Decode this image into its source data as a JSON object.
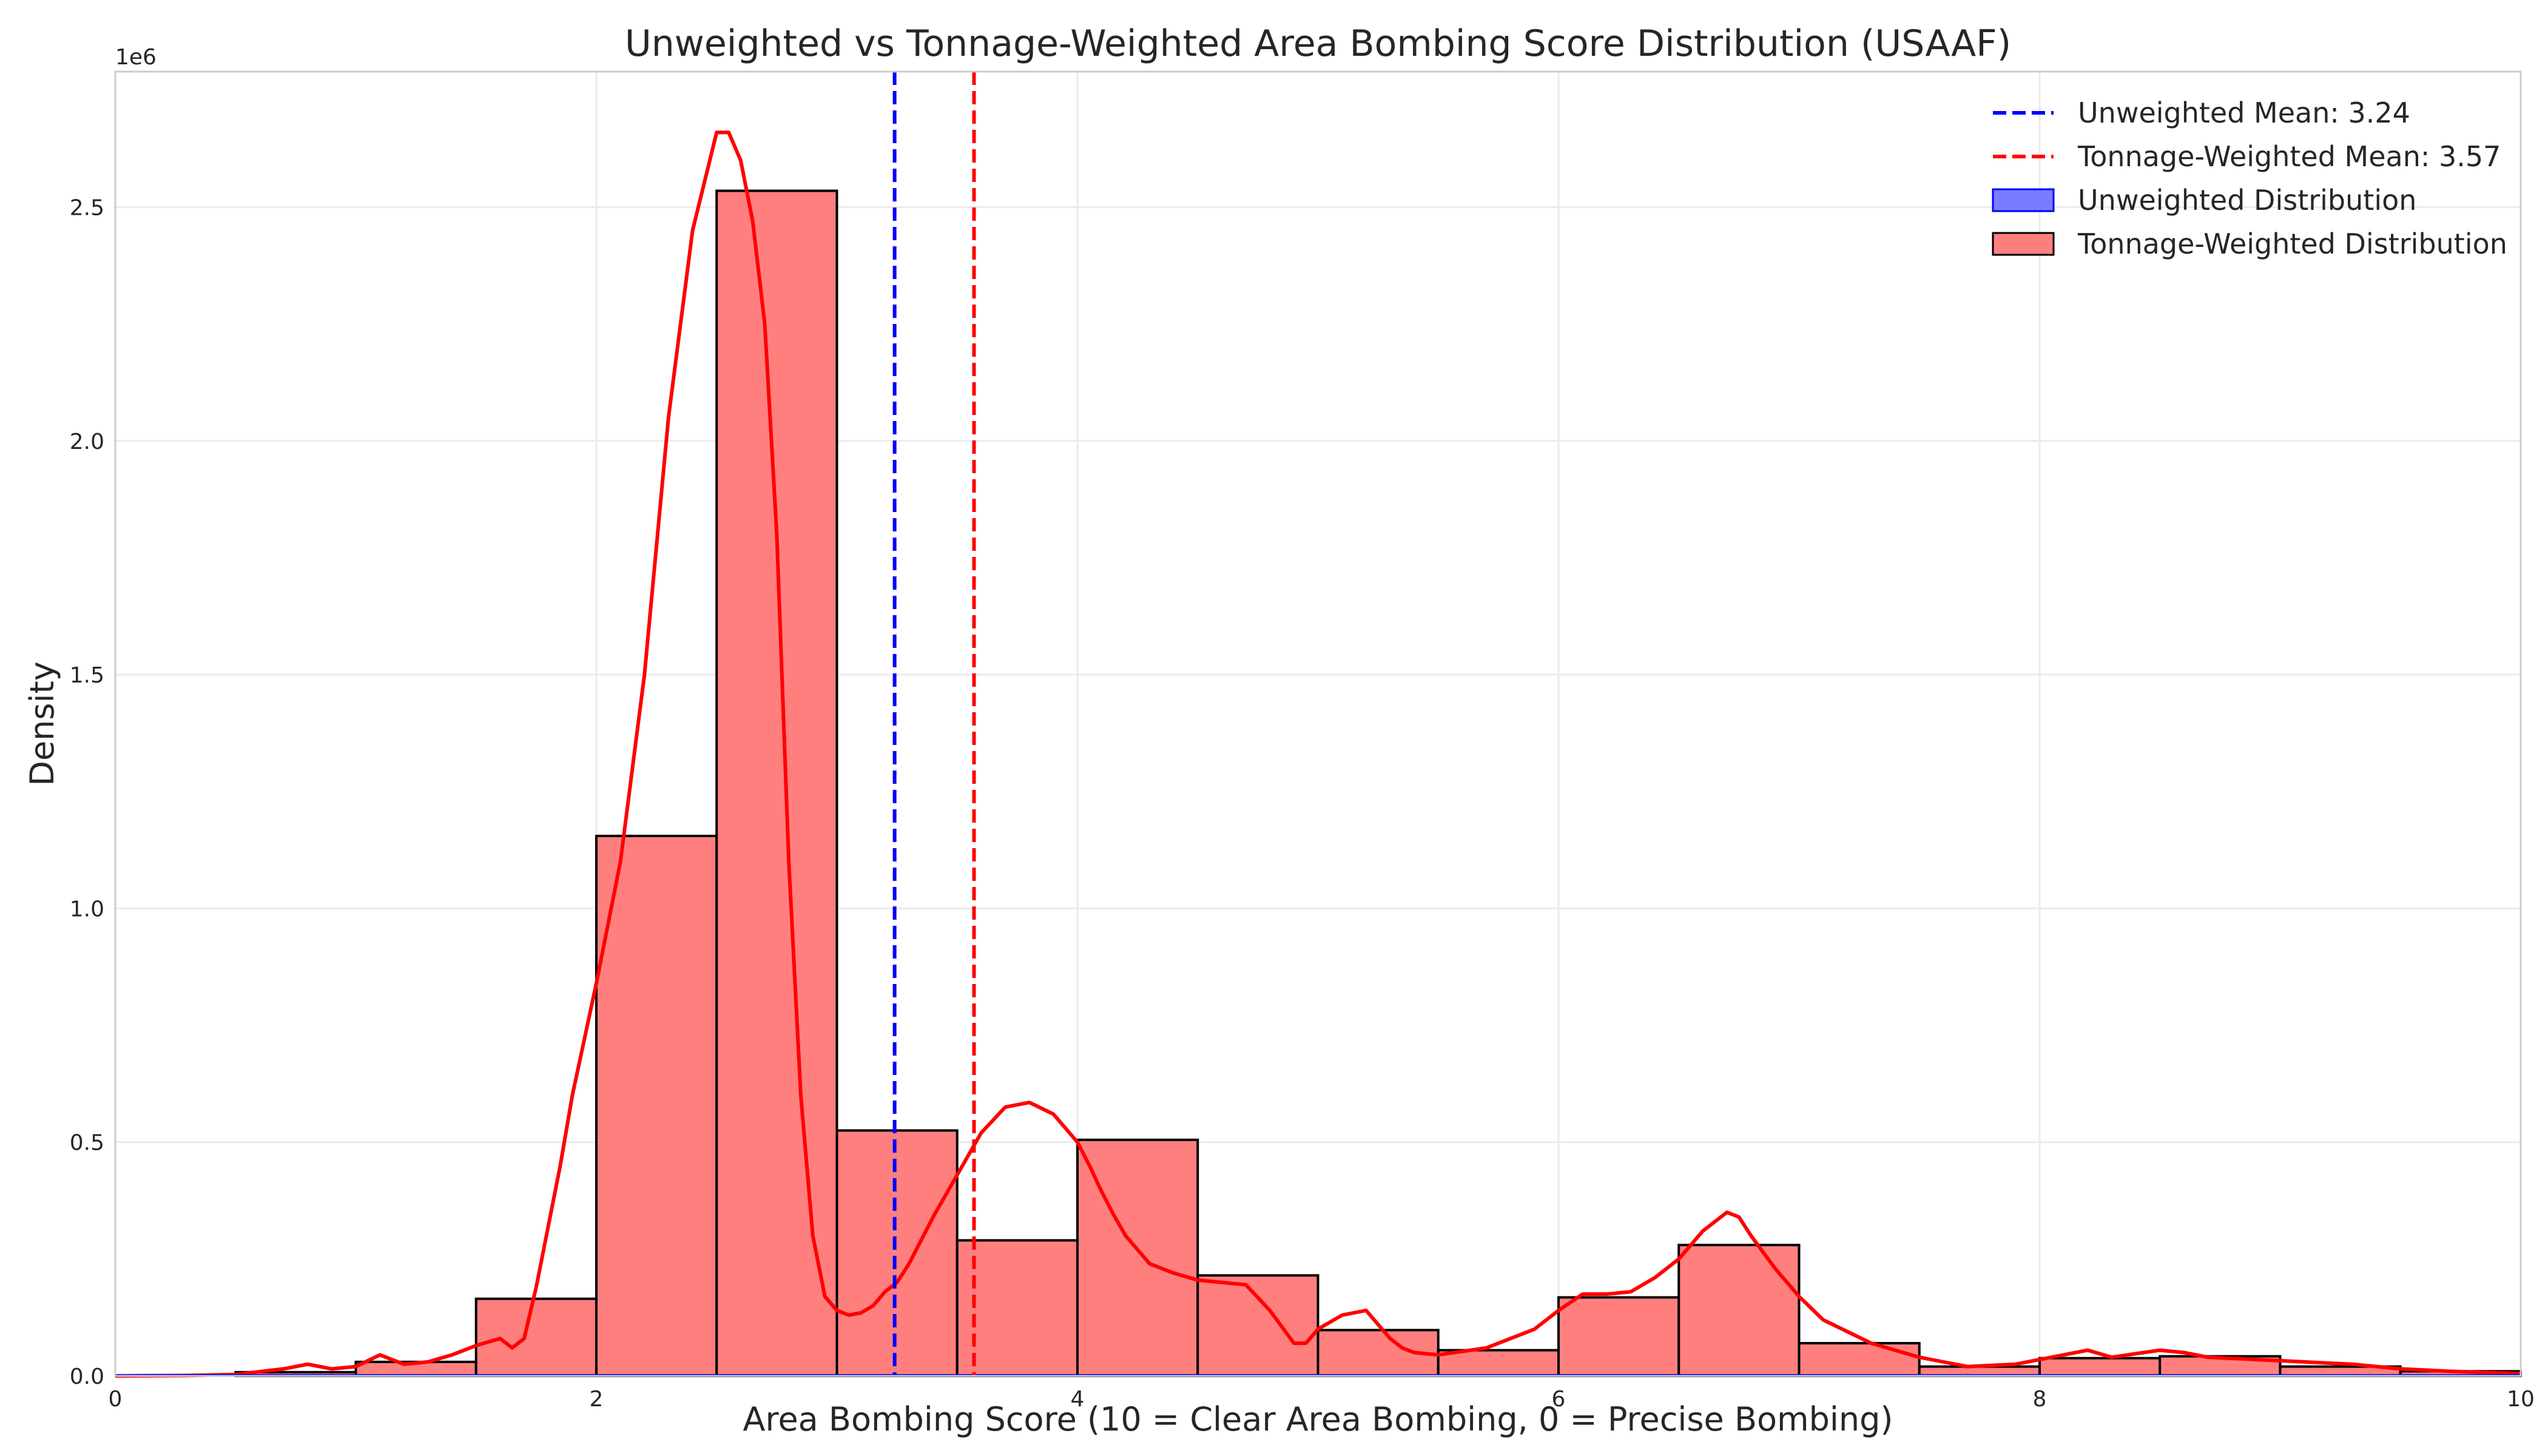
{
  "chart_data": {
    "type": "histogram",
    "title": "Unweighted vs Tonnage-Weighted Area Bombing Score Distribution (USAAF)",
    "xlabel": "Area Bombing Score (10 = Clear Area Bombing, 0 = Precise Bombing)",
    "ylabel": "Density",
    "y_offset_label": "1e6",
    "xlim": [
      0,
      10
    ],
    "ylim": [
      0,
      2.79
    ],
    "x_ticks": [
      0,
      2,
      4,
      6,
      8,
      10
    ],
    "x_tick_labels": [
      "0",
      "2",
      "4",
      "6",
      "8",
      "10"
    ],
    "y_ticks": [
      0,
      0.5,
      1.0,
      1.5,
      2.0,
      2.5
    ],
    "y_tick_labels": [
      "0.0",
      "0.5",
      "1.0",
      "1.5",
      "2.0",
      "2.5"
    ],
    "grid": true,
    "legend_position": "top-right",
    "bin_edges": [
      0.5,
      1.0,
      1.5,
      2.0,
      2.5,
      3.0,
      3.5,
      4.0,
      4.5,
      5.0,
      5.5,
      6.0,
      6.5,
      7.0,
      7.5,
      8.0,
      8.5,
      9.0,
      9.5,
      10.0
    ],
    "series": [
      {
        "name": "Unweighted Distribution",
        "color": "#7b7bff",
        "edge_color": "#0000ff",
        "values": [
          0.001,
          0.001,
          0.001,
          0.002,
          0.003,
          0.002,
          0.001,
          0.001,
          0.001,
          0.001,
          0.001,
          0.001,
          0.001,
          0.001,
          0.001,
          0.001,
          0.001,
          0.001,
          0.001
        ]
      },
      {
        "name": "Tonnage-Weighted Distribution",
        "color": "#ff7f7f",
        "edge_color": "#000000",
        "values": [
          0.008,
          0.03,
          0.165,
          1.155,
          2.535,
          0.525,
          0.29,
          0.505,
          0.215,
          0.098,
          0.055,
          0.168,
          0.28,
          0.07,
          0.02,
          0.038,
          0.042,
          0.02,
          0.01
        ]
      }
    ],
    "kde": {
      "color": "#ff0000",
      "x": [
        0.0,
        0.3,
        0.5,
        0.7,
        0.8,
        0.9,
        1.0,
        1.1,
        1.2,
        1.3,
        1.4,
        1.5,
        1.6,
        1.65,
        1.7,
        1.75,
        1.8,
        1.85,
        1.9,
        1.95,
        2.0,
        2.1,
        2.2,
        2.3,
        2.4,
        2.5,
        2.55,
        2.6,
        2.65,
        2.7,
        2.75,
        2.8,
        2.85,
        2.9,
        2.95,
        3.0,
        3.05,
        3.1,
        3.15,
        3.2,
        3.25,
        3.3,
        3.4,
        3.5,
        3.6,
        3.7,
        3.8,
        3.9,
        4.0,
        4.05,
        4.1,
        4.15,
        4.2,
        4.3,
        4.4,
        4.5,
        4.6,
        4.7,
        4.8,
        4.9,
        4.95,
        5.0,
        5.1,
        5.2,
        5.3,
        5.35,
        5.4,
        5.5,
        5.7,
        5.9,
        6.0,
        6.1,
        6.2,
        6.3,
        6.4,
        6.5,
        6.6,
        6.7,
        6.75,
        6.8,
        6.9,
        7.0,
        7.1,
        7.3,
        7.5,
        7.7,
        7.9,
        8.1,
        8.2,
        8.3,
        8.5,
        8.6,
        8.7,
        8.9,
        9.1,
        9.3,
        9.5,
        9.7,
        10.0
      ],
      "y": [
        0.0,
        0.001,
        0.003,
        0.015,
        0.025,
        0.015,
        0.02,
        0.045,
        0.025,
        0.03,
        0.045,
        0.065,
        0.08,
        0.06,
        0.08,
        0.19,
        0.32,
        0.45,
        0.6,
        0.72,
        0.84,
        1.1,
        1.5,
        2.05,
        2.45,
        2.66,
        2.66,
        2.6,
        2.47,
        2.25,
        1.8,
        1.1,
        0.6,
        0.3,
        0.17,
        0.14,
        0.13,
        0.135,
        0.15,
        0.18,
        0.2,
        0.24,
        0.34,
        0.43,
        0.52,
        0.575,
        0.585,
        0.56,
        0.5,
        0.45,
        0.395,
        0.345,
        0.3,
        0.24,
        0.22,
        0.205,
        0.2,
        0.195,
        0.14,
        0.07,
        0.07,
        0.1,
        0.13,
        0.14,
        0.08,
        0.06,
        0.05,
        0.045,
        0.06,
        0.1,
        0.14,
        0.175,
        0.175,
        0.18,
        0.21,
        0.25,
        0.31,
        0.35,
        0.34,
        0.3,
        0.23,
        0.17,
        0.12,
        0.07,
        0.04,
        0.02,
        0.025,
        0.045,
        0.055,
        0.04,
        0.055,
        0.05,
        0.04,
        0.035,
        0.03,
        0.025,
        0.015,
        0.01,
        0.005
      ]
    },
    "mean_lines": [
      {
        "label": "Unweighted Mean: 3.24",
        "x": 3.24,
        "color": "#0000ff"
      },
      {
        "label": "Tonnage-Weighted Mean: 3.57",
        "x": 3.57,
        "color": "#ff0000"
      }
    ]
  }
}
